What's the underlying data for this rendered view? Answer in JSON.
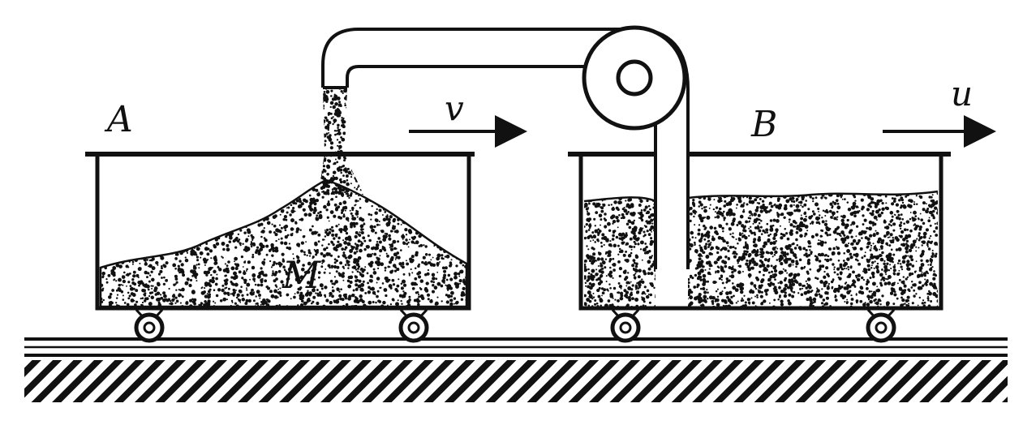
{
  "labels": {
    "cart_a": "A",
    "cart_b": "B",
    "mass": "M",
    "velocity_v": "v",
    "velocity_u": "u"
  },
  "colors": {
    "ink": "#111111",
    "background": "#ffffff"
  }
}
